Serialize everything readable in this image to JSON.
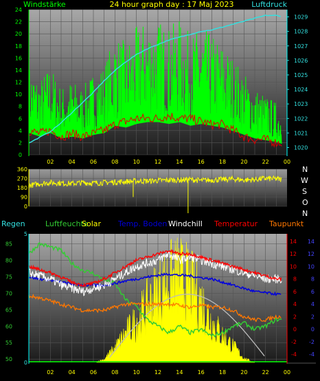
{
  "title": "24 hour graph day : 17 Maj 2023",
  "colors": {
    "wind_avg": "#e00000",
    "wind_gust": "#00ff00",
    "pressure": "#33e0e0",
    "direction": "#ffff00",
    "hum": "#33cc33",
    "solar": "#ffff00",
    "soil": "#0000dd",
    "windchill": "#ffffff",
    "temp": "#ff0000",
    "dew": "#ff7700",
    "rain": "#00ff00"
  },
  "labels": {
    "wind": "Windstärke",
    "pressure": "Luftdruck",
    "rain": "Regen",
    "humidity": "Luftfeuchte",
    "solar": "Solar",
    "soil": "Temp. Boden",
    "windchill": "Windchill",
    "temperature": "Temperatur",
    "dewpoint": "Taupunkt"
  },
  "compass": [
    "N",
    "W",
    "S",
    "O",
    "N"
  ],
  "chart_data": [
    {
      "type": "line",
      "name": "wind-pressure",
      "xlabel": "",
      "ylabel": "",
      "x_ticks": [
        "02",
        "04",
        "06",
        "08",
        "10",
        "12",
        "14",
        "16",
        "18",
        "20",
        "22",
        "00"
      ],
      "xlim": [
        0,
        24
      ],
      "ylim_left": [
        0,
        24
      ],
      "left_ticks": [
        0,
        2,
        4,
        6,
        8,
        10,
        12,
        14,
        16,
        18,
        20,
        22,
        24
      ],
      "ylim_right": [
        1019.5,
        1029.5
      ],
      "right_ticks": [
        1020,
        1021,
        1022,
        1023,
        1024,
        1025,
        1026,
        1027,
        1028,
        1029
      ],
      "grid": true,
      "series": [
        {
          "name": "Windstärke",
          "axis": "left",
          "color_key": "wind_gust",
          "x": [
            0,
            1,
            2,
            3,
            4,
            5,
            6,
            7,
            8,
            9,
            10,
            11,
            12,
            13,
            14,
            15,
            16,
            17,
            18,
            19,
            20,
            21,
            22,
            23,
            23.5
          ],
          "y": [
            12,
            10,
            12,
            9,
            10,
            9,
            11,
            12,
            16,
            15,
            17,
            18,
            18,
            17,
            18,
            16,
            17,
            16,
            15,
            13,
            11,
            9,
            8,
            7,
            6
          ]
        },
        {
          "name": "Windstärke (avg)",
          "axis": "left",
          "color_key": "wind_avg",
          "x": [
            0,
            1,
            2,
            3,
            4,
            5,
            6,
            7,
            8,
            9,
            10,
            11,
            12,
            13,
            14,
            15,
            16,
            17,
            18,
            19,
            20,
            21,
            22,
            23,
            23.5
          ],
          "y": [
            4,
            3.5,
            4,
            3,
            3.5,
            3,
            3.5,
            4,
            5,
            5.5,
            6,
            6,
            6,
            6.5,
            6,
            6,
            5.5,
            5,
            5,
            4,
            3,
            2.5,
            2.5,
            2,
            2
          ]
        },
        {
          "name": "Luftdruck",
          "axis": "right",
          "color_key": "pressure",
          "x": [
            0,
            1,
            2,
            3,
            4,
            5,
            6,
            7,
            8,
            9,
            10,
            11,
            12,
            13,
            14,
            15,
            16,
            17,
            18,
            19,
            20,
            21,
            22,
            23,
            23.5
          ],
          "y": [
            1020.3,
            1020.7,
            1021.1,
            1021.7,
            1022.4,
            1023.1,
            1023.8,
            1024.6,
            1025.3,
            1025.9,
            1026.4,
            1026.8,
            1027.1,
            1027.4,
            1027.6,
            1027.8,
            1028,
            1028.1,
            1028.3,
            1028.5,
            1028.7,
            1028.9,
            1029.1,
            1029.1,
            1029
          ]
        }
      ]
    },
    {
      "type": "line",
      "name": "wind-direction",
      "xlabel": "",
      "ylabel": "",
      "xlim": [
        0,
        24
      ],
      "ylim": [
        0,
        360
      ],
      "left_ticks": [
        0,
        90,
        180,
        270,
        360
      ],
      "left_tick_labels": [
        "0",
        "90",
        "180",
        "270",
        "360"
      ],
      "grid": true,
      "series": [
        {
          "name": "direction",
          "color_key": "direction",
          "x": [
            0,
            1,
            2,
            3,
            4,
            5,
            6,
            7,
            8,
            9,
            10,
            11,
            12,
            13,
            14,
            15,
            16,
            17,
            18,
            19,
            20,
            21,
            22,
            23,
            23.5
          ],
          "y": [
            200,
            220,
            230,
            225,
            220,
            230,
            225,
            230,
            235,
            240,
            245,
            245,
            250,
            255,
            255,
            260,
            250,
            255,
            260,
            265,
            255,
            260,
            270,
            265,
            260
          ]
        }
      ]
    },
    {
      "type": "line",
      "name": "temperatures",
      "xlabel": "",
      "ylabel": "",
      "xlim": [
        0,
        24
      ],
      "hum_ticks": [
        50,
        55,
        60,
        65,
        70,
        75,
        80,
        85
      ],
      "hum_ylim": [
        49,
        88
      ],
      "rain_ticks": [
        0,
        5
      ],
      "temp_ticks": [
        -4,
        -2,
        0,
        2,
        4,
        6,
        8,
        10,
        12,
        14
      ],
      "temp_ylim": [
        -5.3,
        15.2
      ],
      "grid": true,
      "series": [
        {
          "name": "Luftfeuchte",
          "axis": "hum",
          "color_key": "hum",
          "x": [
            0,
            1,
            2,
            3,
            4,
            5,
            6,
            7,
            8,
            9,
            10,
            11,
            12,
            13,
            14,
            15,
            16,
            17,
            18,
            19,
            20,
            21,
            22,
            23,
            23.5
          ],
          "y": [
            82,
            85,
            84,
            83,
            79,
            77,
            76,
            74,
            73,
            68,
            66,
            62,
            60,
            58,
            60,
            58,
            59,
            57,
            58,
            60,
            61,
            59,
            60,
            62,
            62
          ]
        },
        {
          "name": "Temp. Boden",
          "axis": "temp",
          "color_key": "soil",
          "x": [
            0,
            1,
            2,
            3,
            4,
            5,
            6,
            7,
            8,
            9,
            10,
            11,
            12,
            13,
            14,
            15,
            16,
            17,
            18,
            19,
            20,
            21,
            22,
            23,
            23.5
          ],
          "y": [
            8.3,
            8,
            7.8,
            7.5,
            7.2,
            7,
            7,
            7,
            7.3,
            7.7,
            8,
            8.3,
            8.6,
            8.8,
            8.6,
            8.5,
            8.2,
            8,
            7.5,
            7,
            6.5,
            6,
            5.8,
            5.6,
            5.5
          ]
        },
        {
          "name": "Windchill",
          "axis": "temp",
          "color_key": "windchill",
          "x": [
            0,
            1,
            2,
            3,
            4,
            5,
            6,
            7,
            8,
            9,
            10,
            11,
            12,
            13,
            14,
            15,
            16,
            17,
            18,
            19,
            20,
            21,
            22,
            23,
            23.5
          ],
          "y": [
            9,
            8.5,
            8,
            7,
            6.5,
            6,
            6.5,
            7,
            8,
            9,
            10,
            10.5,
            11,
            12,
            11,
            11.5,
            11,
            10.5,
            10,
            9.5,
            9,
            8.5,
            8,
            8,
            8
          ]
        },
        {
          "name": "Temperatur",
          "axis": "temp",
          "color_key": "temp",
          "x": [
            0,
            1,
            2,
            3,
            4,
            5,
            6,
            7,
            8,
            9,
            10,
            11,
            12,
            13,
            14,
            15,
            16,
            17,
            18,
            19,
            20,
            21,
            22,
            23,
            23.5
          ],
          "y": [
            10,
            9.5,
            9,
            8.3,
            7.5,
            7,
            7.3,
            8,
            9,
            10,
            11,
            11.5,
            12,
            12.5,
            12,
            12,
            11.5,
            11,
            10.5,
            10,
            9.5,
            9,
            8.5,
            8,
            8
          ]
        },
        {
          "name": "Taupunkt",
          "axis": "temp",
          "color_key": "dew",
          "x": [
            0,
            1,
            2,
            3,
            4,
            5,
            6,
            7,
            8,
            9,
            10,
            11,
            12,
            13,
            14,
            15,
            16,
            17,
            18,
            19,
            20,
            21,
            22,
            23,
            23.5
          ],
          "y": [
            5.3,
            5,
            4.5,
            4,
            3.5,
            3,
            3,
            3,
            3.5,
            4,
            4,
            4,
            4,
            4,
            3.8,
            3.5,
            3.8,
            3.5,
            3.5,
            3,
            2,
            1.5,
            1.5,
            2,
            2
          ]
        },
        {
          "name": "Solar",
          "axis": "solar",
          "color_key": "solar",
          "x": [
            0,
            6,
            7,
            8,
            9,
            10,
            11,
            12,
            13,
            14,
            15,
            16,
            17,
            18,
            19,
            20,
            21,
            24
          ],
          "y": [
            0,
            0,
            0.3,
            1.4,
            2.8,
            4,
            5.5,
            7,
            8,
            8.5,
            7.6,
            6,
            4,
            2.6,
            1.6,
            0.4,
            0,
            0
          ]
        },
        {
          "name": "Regen",
          "axis": "rain",
          "color_key": "rain",
          "x": [
            0,
            24
          ],
          "y": [
            0,
            0
          ]
        }
      ]
    }
  ]
}
